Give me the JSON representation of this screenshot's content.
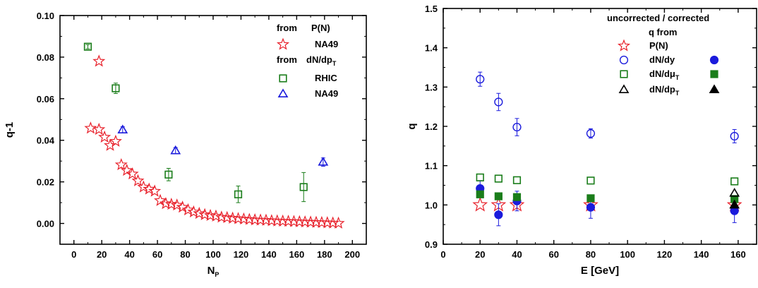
{
  "colors": {
    "red": "#e8202a",
    "green": "#1a7d1a",
    "blue": "#1b1bdc",
    "black": "#000000"
  },
  "chart_data": [
    {
      "type": "scatter",
      "xlabel": "N",
      "xlabel_sub": "P",
      "ylabel": "q-1",
      "xlim": [
        -10,
        210
      ],
      "ylim": [
        -0.01,
        0.1
      ],
      "xticks": [
        0,
        20,
        40,
        60,
        80,
        100,
        120,
        140,
        160,
        180,
        200
      ],
      "xticklabels": [
        "0",
        "20",
        "40",
        "60",
        "80",
        "100",
        "120",
        "140",
        "160",
        "180",
        "200"
      ],
      "yticks": [
        0,
        0.02,
        0.04,
        0.06,
        0.08,
        0.1
      ],
      "yticklabels": [
        "0.00",
        "0.02",
        "0.04",
        "0.06",
        "0.08",
        "0.10"
      ],
      "legend": {
        "groups": [
          {
            "prefix": "from",
            "label": "P(N)"
          },
          {
            "prefix": "from",
            "label": "dN/dp",
            "label_sub": "T"
          }
        ],
        "entries": [
          "NA49",
          "RHIC",
          "NA49"
        ]
      },
      "series": [
        {
          "name": "NA49",
          "marker": "star",
          "color": "red",
          "x": [
            12,
            18,
            22,
            26,
            30,
            34,
            38,
            42,
            46,
            50,
            54,
            58,
            62,
            66,
            70,
            74,
            78,
            82,
            86,
            90,
            94,
            98,
            102,
            106,
            110,
            114,
            118,
            122,
            126,
            130,
            134,
            138,
            142,
            146,
            150,
            154,
            158,
            162,
            166,
            170,
            174,
            178,
            182,
            186,
            190
          ],
          "y": [
            0.0458,
            0.0452,
            0.0415,
            0.0375,
            0.0395,
            0.0282,
            0.0255,
            0.0238,
            0.0205,
            0.0175,
            0.0165,
            0.0155,
            0.011,
            0.0095,
            0.0092,
            0.0088,
            0.0078,
            0.0065,
            0.0055,
            0.0048,
            0.0042,
            0.0038,
            0.0035,
            0.003,
            0.0028,
            0.0025,
            0.0023,
            0.0021,
            0.0019,
            0.0017,
            0.0016,
            0.0015,
            0.0013,
            0.0012,
            0.0011,
            0.001,
            0.0009,
            0.0008,
            0.0007,
            0.0006,
            0.0005,
            0.0004,
            0.0003,
            0.0002,
            0.0001
          ]
        },
        {
          "name": "NA49 high",
          "marker": "star",
          "color": "red",
          "x": [
            18
          ],
          "y": [
            0.078
          ]
        },
        {
          "name": "RHIC",
          "marker": "square",
          "color": "green",
          "x": [
            10,
            30,
            68,
            118,
            165
          ],
          "y": [
            0.085,
            0.065,
            0.0235,
            0.014,
            0.0175
          ],
          "err": [
            0.001,
            0.0025,
            0.003,
            0.004,
            0.007
          ]
        },
        {
          "name": "NA49",
          "marker": "triangle",
          "color": "blue",
          "x": [
            35,
            73,
            179
          ],
          "y": [
            0.045,
            0.035,
            0.0295
          ],
          "err": [
            0.0015,
            0.0015,
            0.002
          ]
        }
      ]
    },
    {
      "type": "scatter",
      "xlabel": "E [GeV]",
      "ylabel": "q",
      "xlim": [
        0,
        170
      ],
      "ylim": [
        0.9,
        1.5
      ],
      "xticks": [
        0,
        20,
        40,
        60,
        80,
        100,
        120,
        140,
        160
      ],
      "xticklabels": [
        "0",
        "20",
        "40",
        "60",
        "80",
        "100",
        "120",
        "140",
        "160"
      ],
      "yticks": [
        0.9,
        1.0,
        1.1,
        1.2,
        1.3,
        1.4,
        1.5
      ],
      "yticklabels": [
        "0.9",
        "1.0",
        "1.1",
        "1.2",
        "1.3",
        "1.4",
        "1.5"
      ],
      "legend": {
        "header1": "uncorrected / corrected",
        "header2": "q from",
        "entries": [
          {
            "label": "P(N)"
          },
          {
            "label": "dN/dy"
          },
          {
            "label": "dN/dμ",
            "label_sub": "T"
          },
          {
            "label": "dN/dp",
            "label_sub": "T"
          }
        ]
      },
      "series": [
        {
          "name": "P(N)",
          "marker": "star",
          "color": "red",
          "x": [
            20,
            30,
            40,
            80,
            158
          ],
          "y": [
            1.0,
            1.0,
            1.0,
            1.0,
            1.0
          ]
        },
        {
          "name": "dN/dy uncorrected",
          "marker": "circle-open",
          "color": "blue",
          "x": [
            20,
            30,
            40,
            80,
            158
          ],
          "y": [
            1.32,
            1.262,
            1.198,
            1.182,
            1.175
          ],
          "err": [
            0.018,
            0.022,
            0.022,
            0.012,
            0.017
          ]
        },
        {
          "name": "dN/dy corrected",
          "marker": "circle-filled",
          "color": "blue",
          "x": [
            20,
            30,
            40,
            80,
            158
          ],
          "y": [
            1.042,
            0.975,
            1.01,
            0.994,
            0.985
          ],
          "err": [
            0.02,
            0.028,
            0.025,
            0.028,
            0.03
          ]
        },
        {
          "name": "dN/dμT uncorrected",
          "marker": "square-open",
          "color": "green",
          "x": [
            20,
            30,
            40,
            80,
            158
          ],
          "y": [
            1.07,
            1.067,
            1.063,
            1.062,
            1.06
          ]
        },
        {
          "name": "dN/dμT corrected",
          "marker": "square-filled",
          "color": "green",
          "x": [
            20,
            30,
            40,
            80,
            158
          ],
          "y": [
            1.027,
            1.022,
            1.02,
            1.017,
            1.015
          ]
        },
        {
          "name": "dN/dpT uncorrected",
          "marker": "triangle-open",
          "color": "black",
          "x": [
            158
          ],
          "y": [
            1.03
          ]
        },
        {
          "name": "dN/dpT corrected",
          "marker": "triangle-filled",
          "color": "black",
          "x": [
            158
          ],
          "y": [
            1.0
          ]
        }
      ]
    }
  ]
}
